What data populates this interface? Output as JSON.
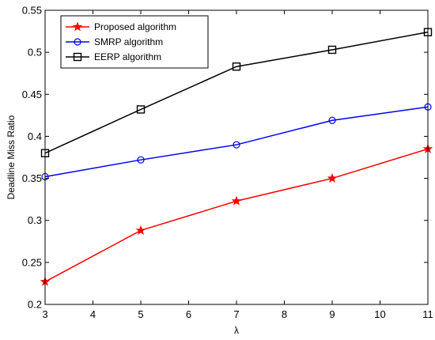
{
  "chart_data": {
    "type": "line",
    "title": "",
    "xlabel": "λ",
    "ylabel": "Deadline Miss Ratio",
    "x": [
      3,
      5,
      7,
      9,
      11
    ],
    "xlim": [
      3,
      11
    ],
    "ylim": [
      0.2,
      0.55
    ],
    "xticks": [
      3,
      4,
      5,
      6,
      7,
      8,
      9,
      10,
      11
    ],
    "yticks": [
      0.2,
      0.25,
      0.3,
      0.35,
      0.4,
      0.45,
      0.5,
      0.55
    ],
    "xtick_labels": [
      "3",
      "4",
      "5",
      "6",
      "7",
      "8",
      "9",
      "10",
      "11"
    ],
    "ytick_labels": [
      "0.2",
      "0.25",
      "0.3",
      "0.35",
      "0.4",
      "0.45",
      "0.5",
      "0.55"
    ],
    "grid": false,
    "legend_position": "top-left",
    "series": [
      {
        "name": "Proposed algorithm",
        "values": [
          0.227,
          0.288,
          0.323,
          0.35,
          0.385
        ],
        "color": "#ff0000",
        "marker": "star"
      },
      {
        "name": "SMRP algorithm",
        "values": [
          0.352,
          0.372,
          0.39,
          0.419,
          0.435
        ],
        "color": "#0000ff",
        "marker": "circle"
      },
      {
        "name": "EERP algorithm",
        "values": [
          0.38,
          0.432,
          0.483,
          0.503,
          0.524
        ],
        "color": "#000000",
        "marker": "square"
      }
    ]
  }
}
